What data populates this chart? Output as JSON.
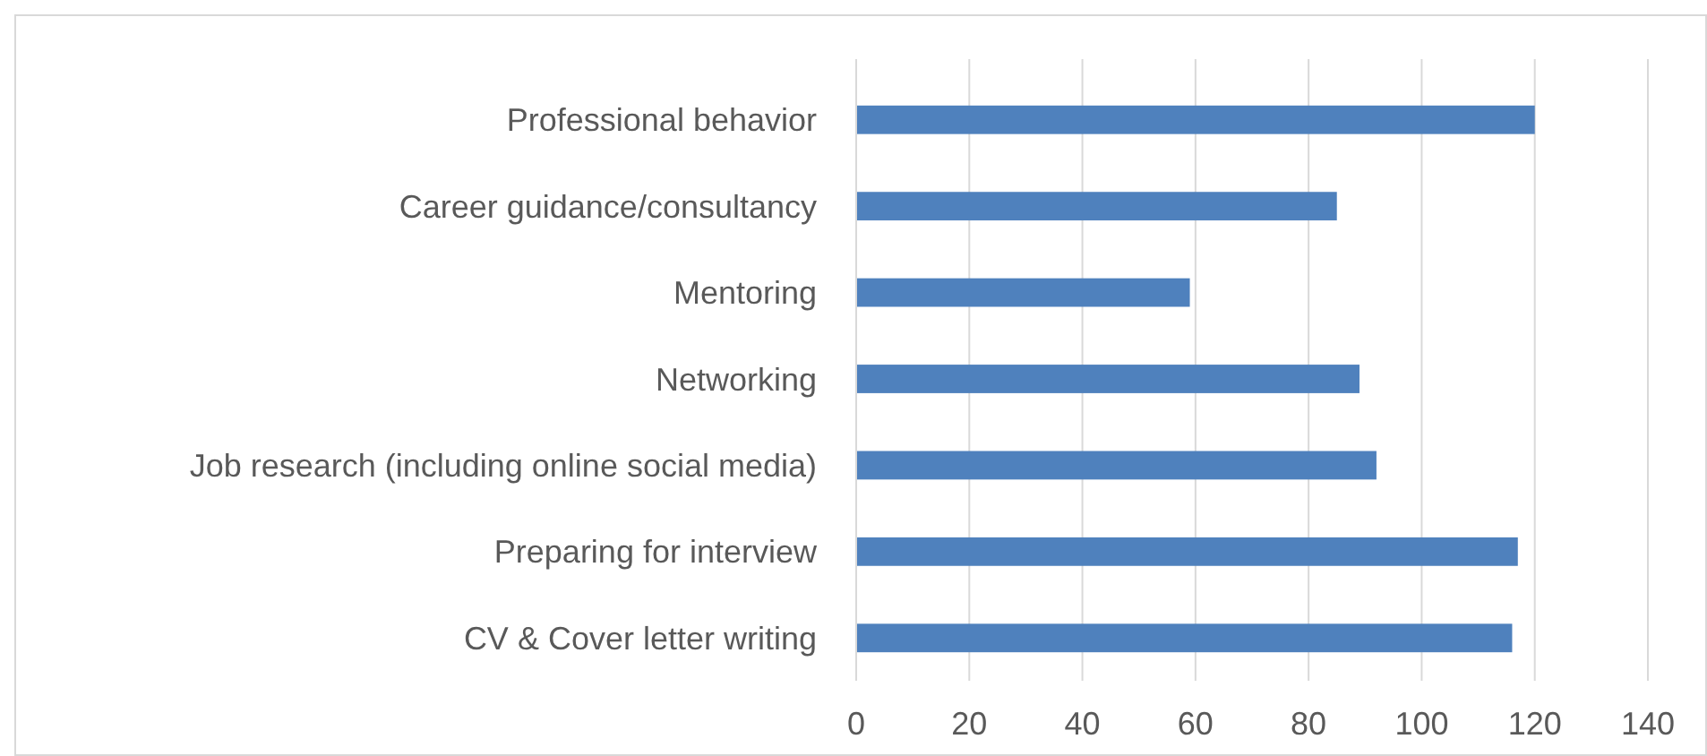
{
  "chart_data": {
    "type": "bar",
    "orientation": "horizontal",
    "categories": [
      "Professional behavior",
      "Career guidance/consultancy",
      "Mentoring",
      "Networking",
      "Job research (including online social media)",
      "Preparing for interview",
      "CV & Cover letter writing"
    ],
    "values": [
      120,
      85,
      59,
      89,
      92,
      117,
      116
    ],
    "color": "#4f81bd",
    "xlim": [
      0,
      140
    ],
    "xticks": [
      0,
      20,
      40,
      60,
      80,
      100,
      120,
      140
    ],
    "grid": "x"
  }
}
